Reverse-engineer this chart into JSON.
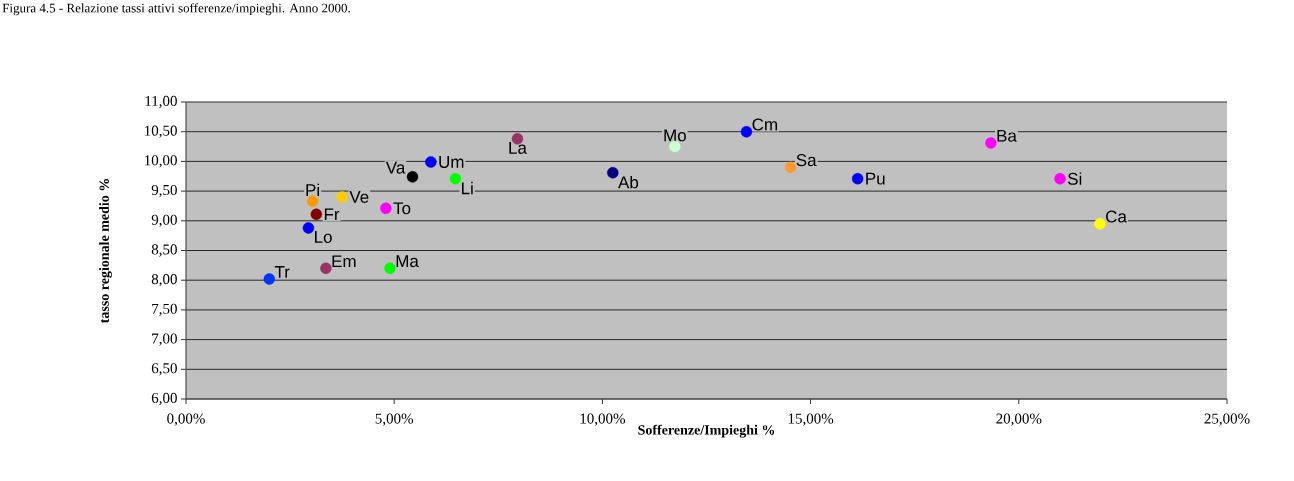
{
  "chart_data": {
    "type": "scatter",
    "title": "Figura 4.5 - Relazione tassi attivi sofferenze/impieghi. Anno 2000.",
    "xlabel": "Sofferenze/Impieghi %",
    "ylabel": "tasso regionale medio %",
    "xlim": [
      0,
      25
    ],
    "ylim": [
      6,
      11
    ],
    "xticks": [
      {
        "value": 0,
        "label": "0,00%"
      },
      {
        "value": 5,
        "label": "5,00%"
      },
      {
        "value": 10,
        "label": "10,00%"
      },
      {
        "value": 15,
        "label": "15,00%"
      },
      {
        "value": 20,
        "label": "20,00%"
      },
      {
        "value": 25,
        "label": "25,00%"
      }
    ],
    "yticks": [
      {
        "value": 6,
        "label": "6,00"
      },
      {
        "value": 6.5,
        "label": "6,50"
      },
      {
        "value": 7,
        "label": "7,00"
      },
      {
        "value": 7.5,
        "label": "7,50"
      },
      {
        "value": 8,
        "label": "8,00"
      },
      {
        "value": 8.5,
        "label": "8,50"
      },
      {
        "value": 9,
        "label": "9,00"
      },
      {
        "value": 9.5,
        "label": "9,50"
      },
      {
        "value": 10,
        "label": "10,00"
      },
      {
        "value": 10.5,
        "label": "10,50"
      },
      {
        "value": 11,
        "label": "11,00"
      }
    ],
    "grid": "y",
    "marker": "circle",
    "series": [
      {
        "name": "Tr",
        "color": "#0033ff",
        "x": [
          2.0
        ],
        "values": [
          8.02
        ]
      },
      {
        "name": "Em",
        "color": "#993366",
        "x": [
          3.36
        ],
        "values": [
          8.2
        ]
      },
      {
        "name": "Ma",
        "color": "#00ff00",
        "x": [
          4.9
        ],
        "values": [
          8.2
        ]
      },
      {
        "name": "Lo",
        "color": "#0000ff",
        "x": [
          2.94
        ],
        "values": [
          8.88
        ]
      },
      {
        "name": "Fr",
        "color": "#800000",
        "x": [
          3.13
        ],
        "values": [
          9.11
        ]
      },
      {
        "name": "Pi",
        "color": "#ff9900",
        "x": [
          3.04
        ],
        "values": [
          9.33
        ]
      },
      {
        "name": "Ve",
        "color": "#ffcc00",
        "x": [
          3.75
        ],
        "values": [
          9.4
        ]
      },
      {
        "name": "To",
        "color": "#ff00ff",
        "x": [
          4.8
        ],
        "values": [
          9.21
        ]
      },
      {
        "name": "Va",
        "color": "#000000",
        "x": [
          5.44
        ],
        "values": [
          9.74
        ]
      },
      {
        "name": "Um",
        "color": "#0000ff",
        "x": [
          5.88
        ],
        "values": [
          9.99
        ]
      },
      {
        "name": "Li",
        "color": "#00ff00",
        "x": [
          6.47
        ],
        "values": [
          9.71
        ]
      },
      {
        "name": "La",
        "color": "#993366",
        "x": [
          7.96
        ],
        "values": [
          10.38
        ]
      },
      {
        "name": "Ab",
        "color": "#000080",
        "x": [
          10.25
        ],
        "values": [
          9.81
        ]
      },
      {
        "name": "Mo",
        "color": "#ccffcc",
        "x": [
          11.74
        ],
        "values": [
          10.25
        ]
      },
      {
        "name": "Cm",
        "color": "#0000ff",
        "x": [
          13.46
        ],
        "values": [
          10.5
        ]
      },
      {
        "name": "Sa",
        "color": "#ff9933",
        "x": [
          14.52
        ],
        "values": [
          9.9
        ]
      },
      {
        "name": "Pu",
        "color": "#0000ff",
        "x": [
          16.13
        ],
        "values": [
          9.71
        ]
      },
      {
        "name": "Ba",
        "color": "#ff00ff",
        "x": [
          19.33
        ],
        "values": [
          10.31
        ]
      },
      {
        "name": "Si",
        "color": "#ff00ff",
        "x": [
          20.99
        ],
        "values": [
          9.71
        ]
      },
      {
        "name": "Ca",
        "color": "#ffff00",
        "x": [
          21.95
        ],
        "values": [
          8.95
        ]
      }
    ]
  }
}
